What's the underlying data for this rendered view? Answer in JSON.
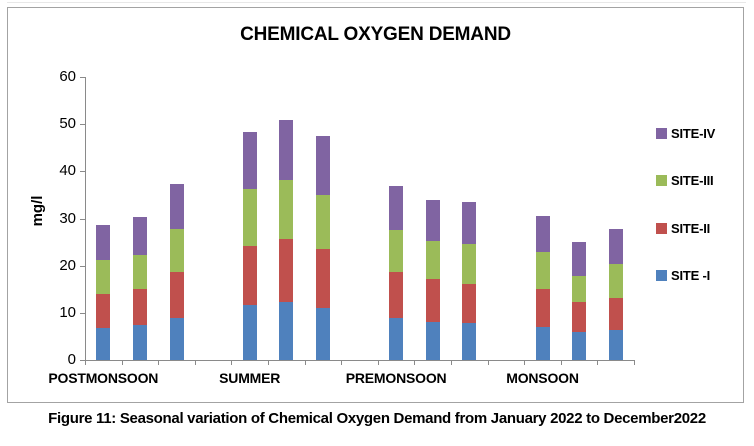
{
  "figure": {
    "caption": "Figure 11: Seasonal variation of Chemical Oxygen Demand from January 2022 to December2022"
  },
  "chart_data": {
    "type": "bar",
    "stacked": true,
    "title": "CHEMICAL OXYGEN DEMAND",
    "xlabel": "",
    "ylabel": "mg/l",
    "ylim": [
      0,
      60
    ],
    "yticks": [
      0,
      10,
      20,
      30,
      40,
      50,
      60
    ],
    "grid": false,
    "legend_position": "right",
    "groups": [
      "POSTMONSOON",
      "SUMMER",
      "PREMONSOON",
      "MONSOON"
    ],
    "bars_per_group": 3,
    "series": [
      {
        "name": "SITE -I",
        "color": "#4F81BD",
        "values": [
          [
            6.8,
            7.4,
            8.9
          ],
          [
            11.7,
            12.4,
            11.1
          ],
          [
            9.0,
            8.1,
            7.8
          ],
          [
            7.1,
            5.9,
            6.3
          ]
        ]
      },
      {
        "name": "SITE-II",
        "color": "#C0504D",
        "values": [
          [
            7.2,
            7.6,
            9.8
          ],
          [
            12.5,
            13.2,
            12.4
          ],
          [
            9.6,
            9.0,
            8.4
          ],
          [
            7.9,
            6.4,
            6.9
          ]
        ]
      },
      {
        "name": "SITE-III",
        "color": "#9BBB59",
        "values": [
          [
            7.2,
            7.3,
            9.1
          ],
          [
            12.0,
            12.5,
            11.5
          ],
          [
            8.9,
            8.1,
            8.3
          ],
          [
            7.8,
            5.5,
            7.1
          ]
        ]
      },
      {
        "name": "SITE-IV",
        "color": "#8064A2",
        "values": [
          [
            7.4,
            8.0,
            9.6
          ],
          [
            12.2,
            12.7,
            12.5
          ],
          [
            9.4,
            8.8,
            8.9
          ],
          [
            7.7,
            7.3,
            7.5
          ]
        ]
      }
    ],
    "group_totals": [
      [
        28.6,
        30.3,
        37.4
      ],
      [
        48.4,
        50.8,
        47.5
      ],
      [
        36.9,
        34.0,
        33.4
      ],
      [
        30.5,
        25.1,
        27.8
      ]
    ],
    "legend_order_top_to_bottom": [
      "SITE-IV",
      "SITE-III",
      "SITE-II",
      "SITE -I"
    ],
    "axis_color": "#8a8a8a"
  }
}
